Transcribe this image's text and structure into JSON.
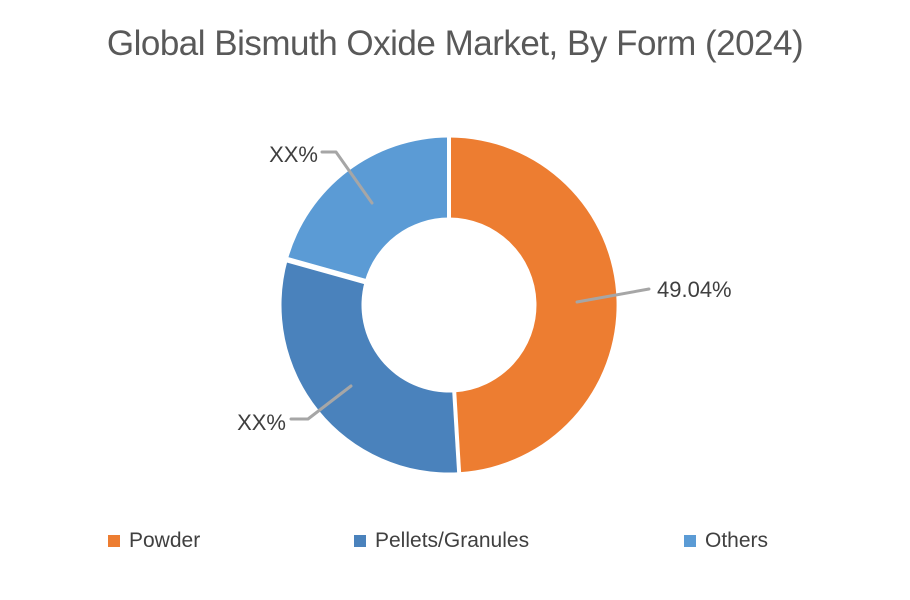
{
  "chart_data": {
    "type": "pie",
    "subtype": "donut",
    "title": "Global Bismuth Oxide Market, By Form (2024)",
    "categories": [
      "Powder",
      "Pellets/Granules",
      "Others"
    ],
    "values": [
      49.04,
      30.3,
      20.66
    ],
    "data_labels": [
      "49.04%",
      "XX%",
      "XX%"
    ],
    "colors": [
      "#ED7D31",
      "#4A82BC",
      "#5B9BD5"
    ],
    "start_angle_deg": 0,
    "direction": "clockwise",
    "hole_ratio": 0.52,
    "legend_position": "bottom",
    "background_color": "#FFFFFF",
    "title_color": "#595959",
    "label_color": "#3F3F3F",
    "leader_line_color": "#A6A6A6"
  },
  "legend": {
    "items": [
      {
        "label": "Powder",
        "color": "#ED7D31"
      },
      {
        "label": "Pellets/Granules",
        "color": "#4A82BC"
      },
      {
        "label": "Others",
        "color": "#5B9BD5"
      }
    ]
  }
}
